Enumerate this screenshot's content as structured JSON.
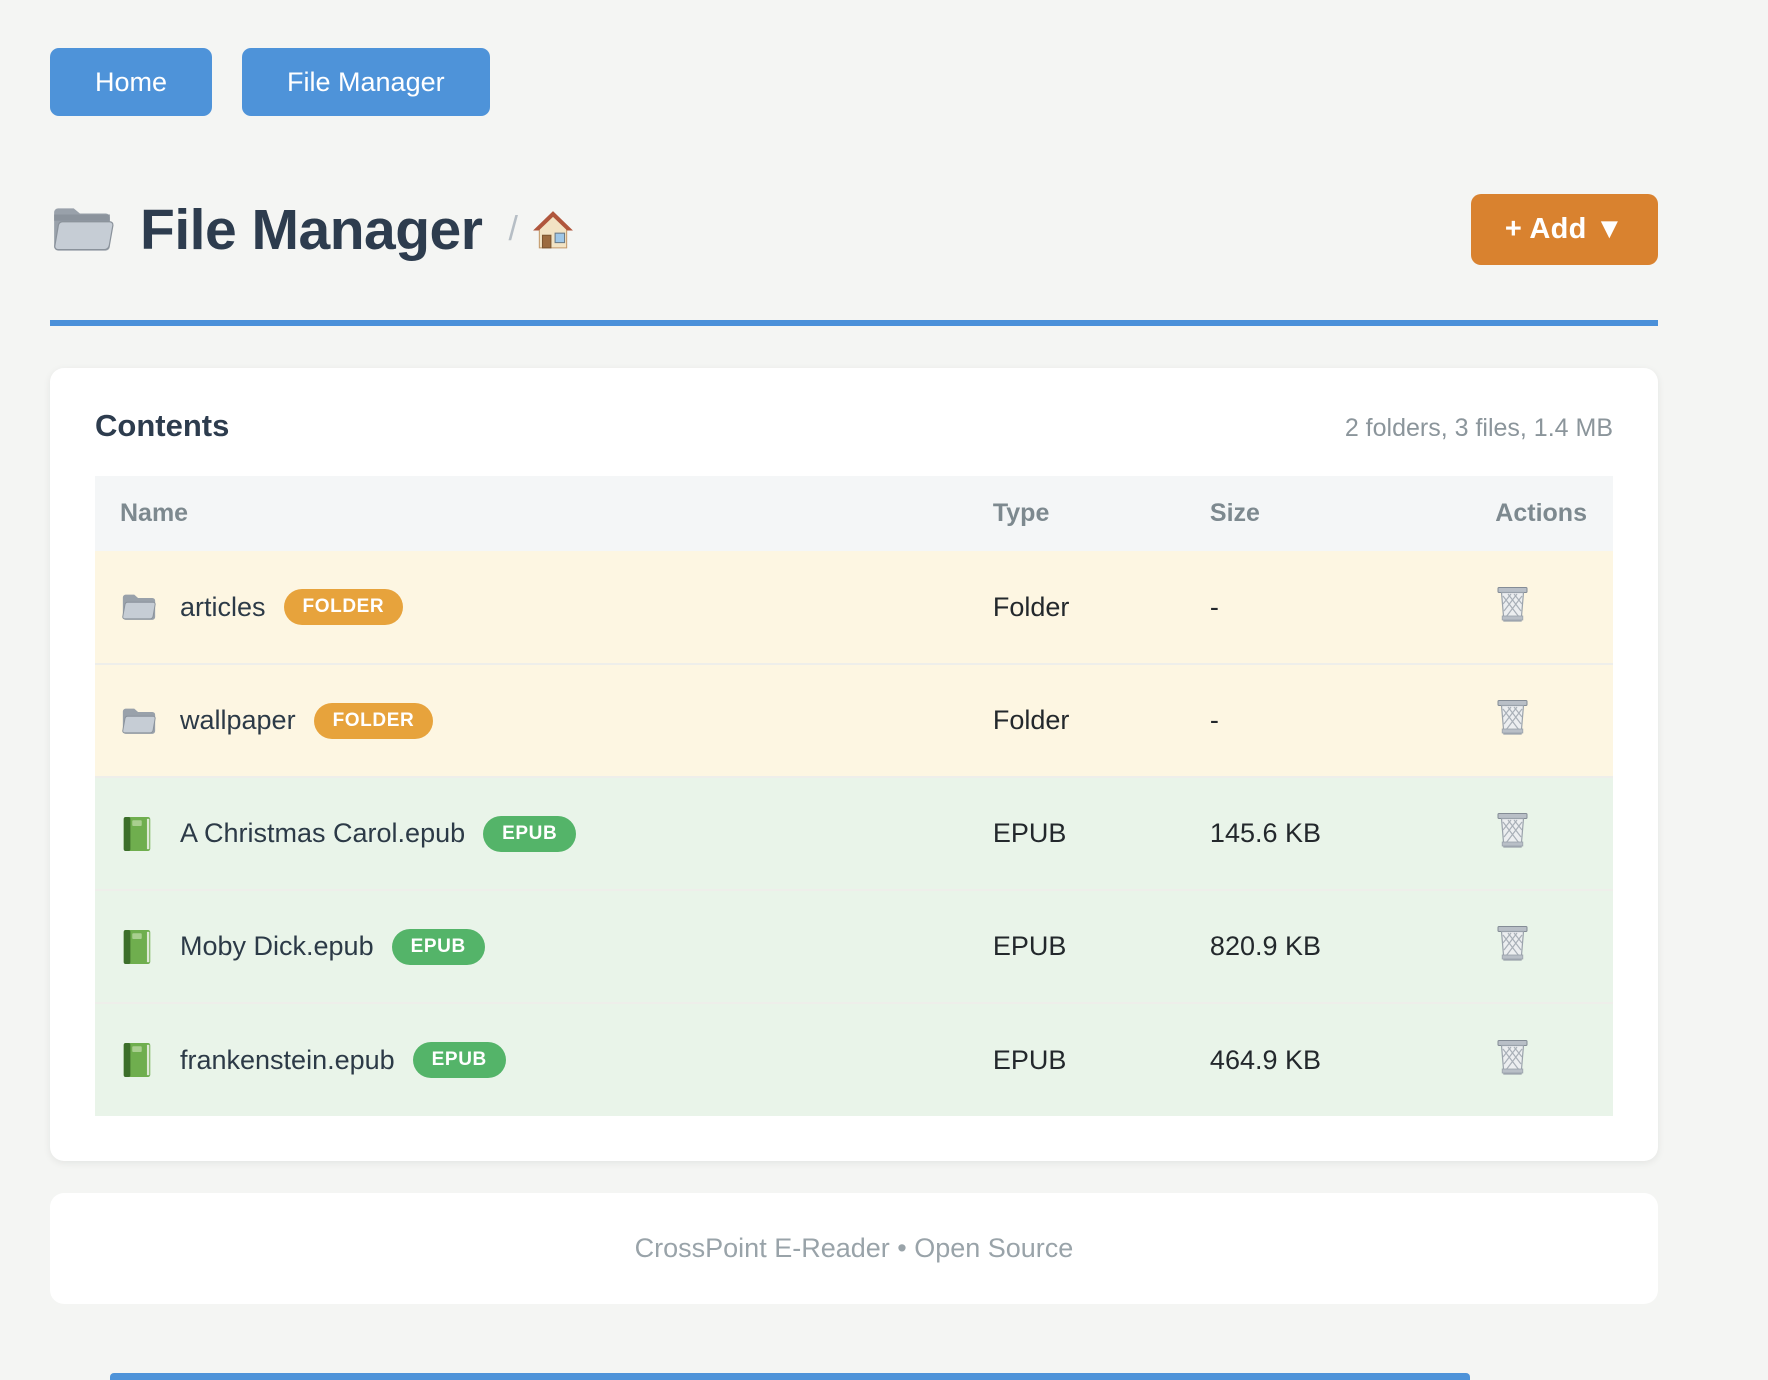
{
  "colors": {
    "accent_blue": "#4e93d9",
    "rule_blue": "#4a90d9",
    "accent_orange": "#d9822f",
    "badge_folder": "#e7a33c",
    "badge_epub": "#54b469",
    "row_folder_bg": "#fdf6e2",
    "row_epub_bg": "#e9f4e9"
  },
  "nav": {
    "home_label": "Home",
    "file_manager_label": "File Manager"
  },
  "header": {
    "title_icon": "open-folder-icon",
    "title": "File Manager",
    "breadcrumb_separator": "/",
    "breadcrumb_home_icon": "house-icon",
    "add_button_label": "+ Add ▼"
  },
  "panel": {
    "title": "Contents",
    "summary": "2 folders, 3 files, 1.4 MB"
  },
  "table": {
    "headers": [
      "Name",
      "Type",
      "Size",
      "Actions"
    ],
    "rows": [
      {
        "icon": "folder-icon",
        "name": "articles",
        "badge": "FOLDER",
        "type": "Folder",
        "size": "-",
        "style": "folder",
        "action_icon": "trash-icon"
      },
      {
        "icon": "folder-icon",
        "name": "wallpaper",
        "badge": "FOLDER",
        "type": "Folder",
        "size": "-",
        "style": "folder",
        "action_icon": "trash-icon"
      },
      {
        "icon": "book-icon",
        "name": "A Christmas Carol.epub",
        "badge": "EPUB",
        "type": "EPUB",
        "size": "145.6 KB",
        "style": "epub",
        "action_icon": "trash-icon"
      },
      {
        "icon": "book-icon",
        "name": "Moby Dick.epub",
        "badge": "EPUB",
        "type": "EPUB",
        "size": "820.9 KB",
        "style": "epub",
        "action_icon": "trash-icon"
      },
      {
        "icon": "book-icon",
        "name": "frankenstein.epub",
        "badge": "EPUB",
        "type": "EPUB",
        "size": "464.9 KB",
        "style": "epub",
        "action_icon": "trash-icon"
      }
    ]
  },
  "footer": {
    "text": "CrossPoint E-Reader • Open Source"
  }
}
